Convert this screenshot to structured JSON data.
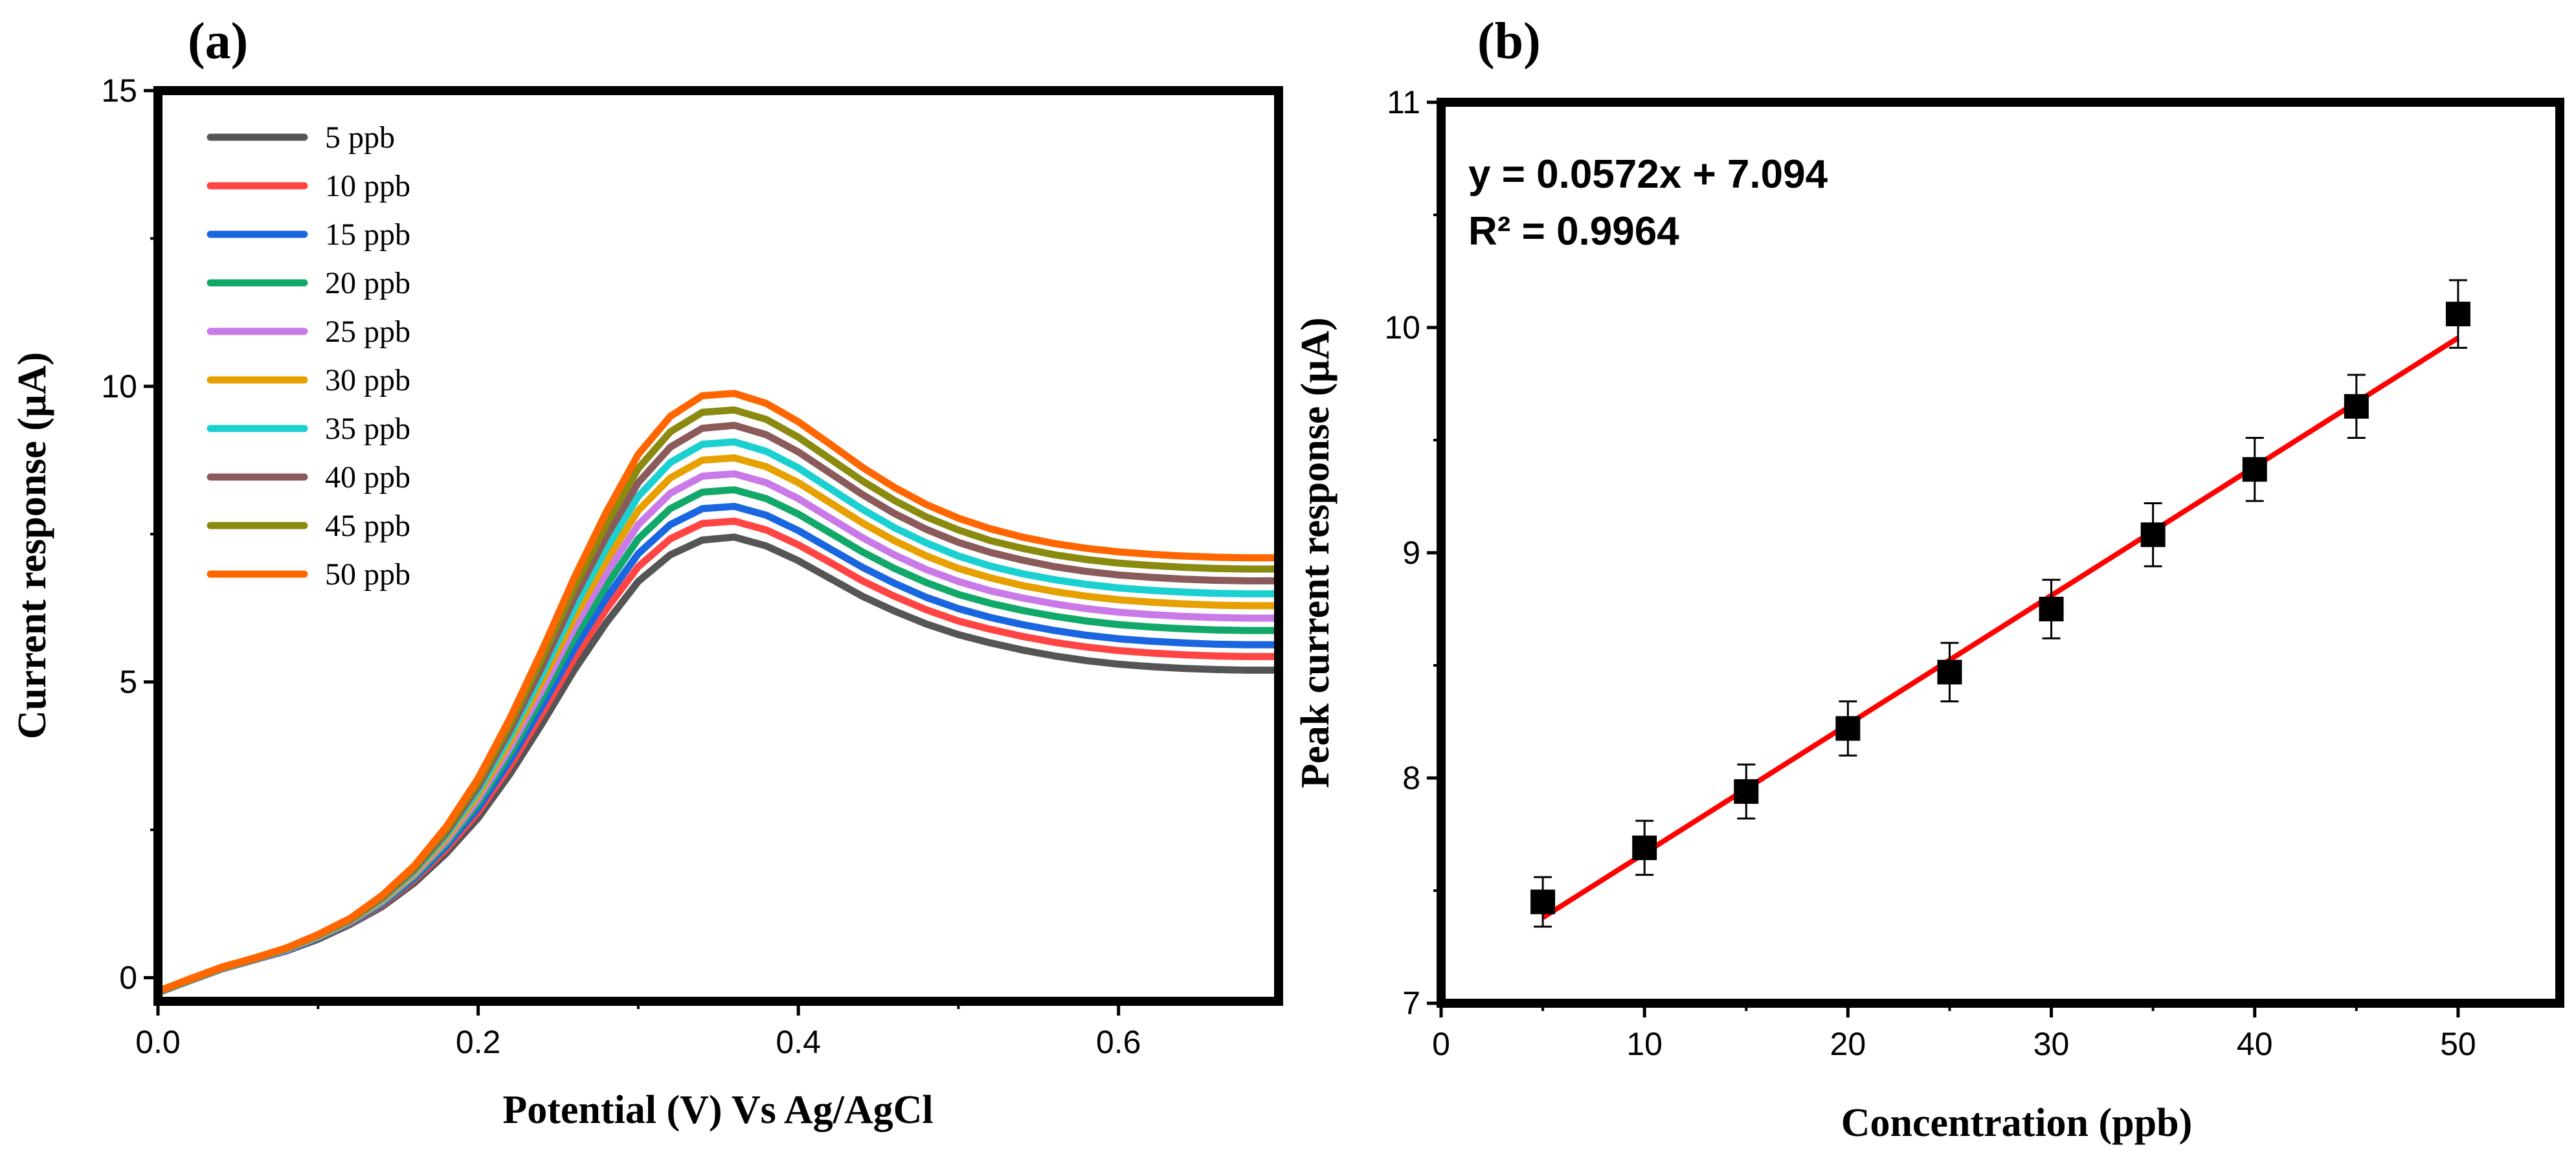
{
  "chart_data": [
    {
      "panel": "(a)",
      "type": "line",
      "title": "",
      "xlabel": "Potential (V) Vs Ag/AgCl",
      "ylabel": "Current response (µA)",
      "xlim": [
        0.0,
        0.7
      ],
      "ylim": [
        -0.4,
        15
      ],
      "xticks": [
        0.0,
        0.2,
        0.4,
        0.6
      ],
      "xtick_labels": [
        "0.0",
        "0.2",
        "0.4",
        "0.6"
      ],
      "yticks": [
        0,
        5,
        10,
        15
      ],
      "ytick_labels": [
        "0",
        "5",
        "10",
        "15"
      ],
      "legend_position": "top-left",
      "x": [
        0.0,
        0.02,
        0.04,
        0.06,
        0.08,
        0.1,
        0.12,
        0.14,
        0.16,
        0.18,
        0.2,
        0.22,
        0.24,
        0.26,
        0.28,
        0.3,
        0.32,
        0.34,
        0.36,
        0.38,
        0.4,
        0.42,
        0.44,
        0.46,
        0.48,
        0.5,
        0.52,
        0.54,
        0.56,
        0.58,
        0.6,
        0.62,
        0.64,
        0.66,
        0.68,
        0.7
      ],
      "series": [
        {
          "name": "5 ppb",
          "color": "#555555",
          "values": [
            -0.25,
            -0.05,
            0.15,
            0.3,
            0.45,
            0.65,
            0.9,
            1.2,
            1.6,
            2.1,
            2.7,
            3.45,
            4.3,
            5.2,
            6.0,
            6.7,
            7.15,
            7.4,
            7.45,
            7.3,
            7.05,
            6.75,
            6.45,
            6.2,
            5.98,
            5.8,
            5.66,
            5.54,
            5.44,
            5.36,
            5.3,
            5.26,
            5.23,
            5.21,
            5.2,
            5.2
          ]
        },
        {
          "name": "10 ppb",
          "color": "#ff4444",
          "values": [
            -0.25,
            -0.05,
            0.15,
            0.3,
            0.46,
            0.67,
            0.92,
            1.23,
            1.65,
            2.17,
            2.8,
            3.58,
            4.47,
            5.4,
            6.23,
            6.95,
            7.42,
            7.68,
            7.72,
            7.57,
            7.32,
            7.02,
            6.71,
            6.45,
            6.22,
            6.03,
            5.89,
            5.77,
            5.67,
            5.59,
            5.53,
            5.49,
            5.46,
            5.44,
            5.43,
            5.43
          ]
        },
        {
          "name": "15 ppb",
          "color": "#1a66e0",
          "values": [
            -0.25,
            -0.05,
            0.15,
            0.3,
            0.46,
            0.67,
            0.93,
            1.25,
            1.68,
            2.22,
            2.87,
            3.68,
            4.6,
            5.56,
            6.42,
            7.17,
            7.66,
            7.93,
            7.97,
            7.82,
            7.56,
            7.25,
            6.94,
            6.67,
            6.43,
            6.24,
            6.09,
            5.97,
            5.87,
            5.79,
            5.73,
            5.69,
            5.66,
            5.64,
            5.63,
            5.63
          ]
        },
        {
          "name": "20 ppb",
          "color": "#12a86a",
          "values": [
            -0.25,
            -0.04,
            0.16,
            0.31,
            0.47,
            0.68,
            0.94,
            1.27,
            1.71,
            2.27,
            2.95,
            3.79,
            4.74,
            5.74,
            6.63,
            7.42,
            7.93,
            8.21,
            8.25,
            8.1,
            7.84,
            7.52,
            7.2,
            6.92,
            6.68,
            6.48,
            6.33,
            6.21,
            6.11,
            6.03,
            5.97,
            5.93,
            5.9,
            5.88,
            5.87,
            5.87
          ]
        },
        {
          "name": "25 ppb",
          "color": "#c97ae8",
          "values": [
            -0.24,
            -0.04,
            0.16,
            0.31,
            0.47,
            0.69,
            0.95,
            1.29,
            1.74,
            2.31,
            3.02,
            3.89,
            4.87,
            5.91,
            6.84,
            7.66,
            8.19,
            8.48,
            8.52,
            8.37,
            8.1,
            7.77,
            7.44,
            7.15,
            6.9,
            6.7,
            6.54,
            6.42,
            6.32,
            6.24,
            6.18,
            6.14,
            6.11,
            6.09,
            6.08,
            6.08
          ]
        },
        {
          "name": "30 ppb",
          "color": "#e6a000",
          "values": [
            -0.24,
            -0.04,
            0.16,
            0.31,
            0.48,
            0.7,
            0.96,
            1.31,
            1.77,
            2.36,
            3.09,
            3.99,
            5.01,
            6.08,
            7.05,
            7.9,
            8.45,
            8.75,
            8.79,
            8.64,
            8.37,
            8.03,
            7.69,
            7.39,
            7.13,
            6.92,
            6.76,
            6.63,
            6.53,
            6.45,
            6.39,
            6.35,
            6.32,
            6.3,
            6.29,
            6.29
          ]
        },
        {
          "name": "35 ppb",
          "color": "#1ad0d0",
          "values": [
            -0.24,
            -0.03,
            0.17,
            0.32,
            0.48,
            0.71,
            0.97,
            1.33,
            1.8,
            2.41,
            3.16,
            4.09,
            5.14,
            6.25,
            7.26,
            8.14,
            8.71,
            9.02,
            9.06,
            8.9,
            8.62,
            8.27,
            7.92,
            7.61,
            7.35,
            7.13,
            6.96,
            6.83,
            6.73,
            6.65,
            6.59,
            6.55,
            6.52,
            6.5,
            6.49,
            6.49
          ]
        },
        {
          "name": "40 ppb",
          "color": "#8b5a5a",
          "values": [
            -0.24,
            -0.03,
            0.17,
            0.32,
            0.49,
            0.72,
            0.98,
            1.35,
            1.83,
            2.45,
            3.23,
            4.19,
            5.27,
            6.42,
            7.46,
            8.37,
            8.97,
            9.29,
            9.34,
            9.18,
            8.89,
            8.53,
            8.17,
            7.85,
            7.58,
            7.36,
            7.19,
            7.06,
            6.95,
            6.87,
            6.81,
            6.77,
            6.74,
            6.72,
            6.71,
            6.71
          ]
        },
        {
          "name": "45 ppb",
          "color": "#8a8a10",
          "values": [
            -0.23,
            -0.03,
            0.17,
            0.33,
            0.49,
            0.72,
            0.99,
            1.37,
            1.86,
            2.5,
            3.3,
            4.29,
            5.41,
            6.59,
            7.67,
            8.61,
            9.23,
            9.56,
            9.6,
            9.44,
            9.14,
            8.77,
            8.4,
            8.07,
            7.79,
            7.57,
            7.39,
            7.26,
            7.15,
            7.07,
            7.01,
            6.97,
            6.94,
            6.92,
            6.91,
            6.91
          ]
        },
        {
          "name": "50 ppb",
          "color": "#ff6600",
          "values": [
            -0.23,
            -0.02,
            0.18,
            0.33,
            0.5,
            0.73,
            1.0,
            1.39,
            1.89,
            2.55,
            3.37,
            4.39,
            5.54,
            6.76,
            7.87,
            8.85,
            9.49,
            9.84,
            9.88,
            9.71,
            9.4,
            9.02,
            8.63,
            8.29,
            8.0,
            7.77,
            7.59,
            7.45,
            7.34,
            7.26,
            7.2,
            7.16,
            7.13,
            7.11,
            7.1,
            7.1
          ]
        }
      ]
    },
    {
      "panel": "(b)",
      "type": "scatter",
      "title": "",
      "xlabel": "Concentration (ppb)",
      "ylabel": "Peak current response (µA)",
      "xlim": [
        0,
        55
      ],
      "ylim": [
        7,
        11
      ],
      "xticks": [
        0,
        10,
        20,
        30,
        40,
        50
      ],
      "xtick_labels": [
        "0",
        "10",
        "20",
        "30",
        "40",
        "50"
      ],
      "yticks": [
        7,
        8,
        9,
        10,
        11
      ],
      "ytick_labels": [
        "7",
        "8",
        "9",
        "10",
        "11"
      ],
      "x": [
        5,
        10,
        15,
        20,
        25,
        30,
        35,
        40,
        45,
        50
      ],
      "y": [
        7.45,
        7.69,
        7.94,
        8.22,
        8.47,
        8.75,
        9.08,
        9.37,
        9.65,
        10.06
      ],
      "error": [
        0.11,
        0.12,
        0.12,
        0.12,
        0.13,
        0.13,
        0.14,
        0.14,
        0.14,
        0.15
      ],
      "fit": {
        "slope": 0.0572,
        "intercept": 7.094,
        "x_range": [
          5,
          50
        ],
        "color": "#ff0000"
      },
      "marker_color": "#000000",
      "annotation_equation": "y = 0.0572x + 7.094",
      "annotation_r2": "R² = 0.9964"
    }
  ]
}
